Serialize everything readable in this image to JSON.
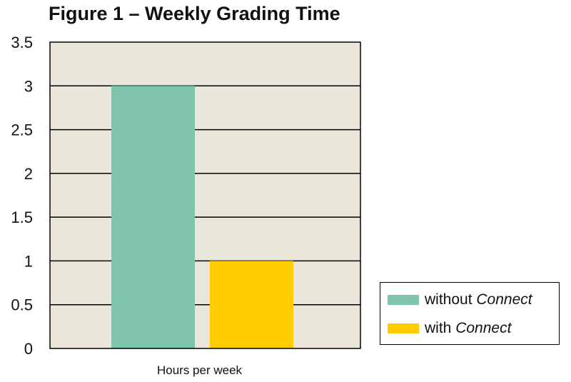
{
  "chart_data": {
    "type": "bar",
    "title": "Figure 1 – Weekly Grading Time",
    "xlabel": "Hours per week",
    "ylabel": "",
    "categories": [
      "Hours per week"
    ],
    "series": [
      {
        "name": "without Connect",
        "name_plain": "without ",
        "name_italic": "Connect",
        "values": [
          3
        ],
        "color": "#7fc4ad"
      },
      {
        "name": "with Connect",
        "name_plain": "with ",
        "name_italic": "Connect",
        "values": [
          1
        ],
        "color": "#ffcc00"
      }
    ],
    "ylim": [
      0,
      3.5
    ],
    "yticks": [
      "0",
      "0.5",
      "1",
      "1.5",
      "2",
      "2.5",
      "3",
      "3.5"
    ],
    "ytick_values": [
      0,
      0.5,
      1,
      1.5,
      2,
      2.5,
      3,
      3.5
    ],
    "grid": true,
    "legend_position": "bottom-right",
    "plot_background": "#ebe6da"
  }
}
